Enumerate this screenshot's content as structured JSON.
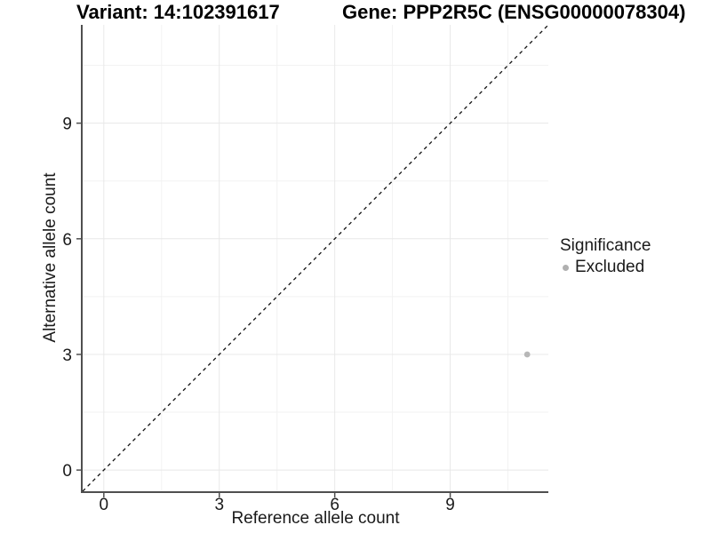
{
  "figure": {
    "title_left": "Variant: 14:102391617",
    "title_right": "Gene: PPP2R5C (ENSG00000078304)"
  },
  "chart_data": {
    "type": "scatter",
    "xlabel": "Reference allele count",
    "ylabel": "Alternative allele count",
    "xlim": [
      -0.55,
      11.55
    ],
    "ylim": [
      -0.55,
      11.55
    ],
    "x_ticks": [
      0,
      3,
      6,
      9
    ],
    "y_ticks": [
      0,
      3,
      6,
      9
    ],
    "x_minor_ticks": [
      1.5,
      4.5,
      7.5,
      10.5
    ],
    "y_minor_ticks": [
      1.5,
      4.5,
      7.5,
      10.5
    ],
    "grid": true,
    "points": [
      {
        "x": 11,
        "y": 3,
        "series": "Excluded"
      }
    ],
    "identity_line": {
      "slope": 1,
      "intercept": 0,
      "style": "dashed"
    },
    "legend": {
      "title": "Significance",
      "position": "right",
      "items": [
        {
          "label": "Excluded",
          "marker": "circle",
          "color": "#b0b0b0"
        }
      ]
    },
    "colors": {
      "point": "#b7b7b7",
      "axis_line": "#4f4f4f",
      "grid_major": "#e8e8e8",
      "grid_minor": "#f2f2f2",
      "dashed_line": "#111111",
      "tick_text": "#1a1a1a"
    }
  }
}
